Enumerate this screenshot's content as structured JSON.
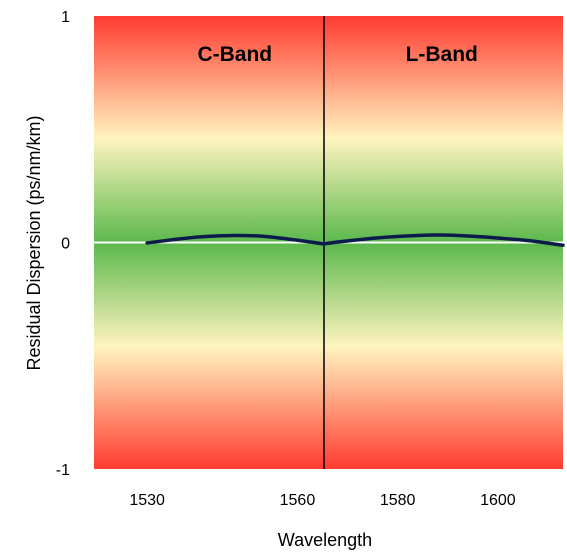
{
  "chart_data": {
    "type": "line",
    "xlabel": "Wavelength",
    "ylabel": "Residual Dispersion (ps/nm/km)",
    "xlim": [
      1519.4,
      1613
    ],
    "ylim": [
      -1,
      1
    ],
    "x_ticks": [
      {
        "value": 1530,
        "label": "1530"
      },
      {
        "value": 1560,
        "label": "1560"
      },
      {
        "value": 1580,
        "label": "1580"
      },
      {
        "value": 1600,
        "label": "1600"
      }
    ],
    "y_ticks": [
      {
        "value": 1,
        "label": "1"
      },
      {
        "value": 0,
        "label": "0"
      },
      {
        "value": -1,
        "label": "-1"
      }
    ],
    "band_boundary": 1565.3,
    "bands": [
      {
        "label": "C-Band",
        "x": 1547.5
      },
      {
        "label": "L-Band",
        "x": 1588.8
      }
    ],
    "series": [
      {
        "color": "#0d1b4c",
        "points": [
          [
            1530,
            -0.002
          ],
          [
            1535,
            0.012
          ],
          [
            1540,
            0.024
          ],
          [
            1545,
            0.03
          ],
          [
            1548,
            0.031
          ],
          [
            1552,
            0.029
          ],
          [
            1556,
            0.021
          ],
          [
            1560,
            0.01
          ],
          [
            1563,
            0.001
          ],
          [
            1565.3,
            -0.005
          ],
          [
            1568,
            0.002
          ],
          [
            1573,
            0.014
          ],
          [
            1578,
            0.024
          ],
          [
            1583,
            0.03
          ],
          [
            1588,
            0.033
          ],
          [
            1592,
            0.031
          ],
          [
            1597,
            0.025
          ],
          [
            1602,
            0.016
          ],
          [
            1607,
            0.006
          ],
          [
            1611,
            -0.006
          ],
          [
            1613,
            -0.012
          ]
        ]
      }
    ],
    "zero_line_color": "#ffffff",
    "background_gradient": [
      "#ff3b30",
      "#fff4c0",
      "#5cb84c",
      "#fff4c0",
      "#ff3b30"
    ]
  }
}
